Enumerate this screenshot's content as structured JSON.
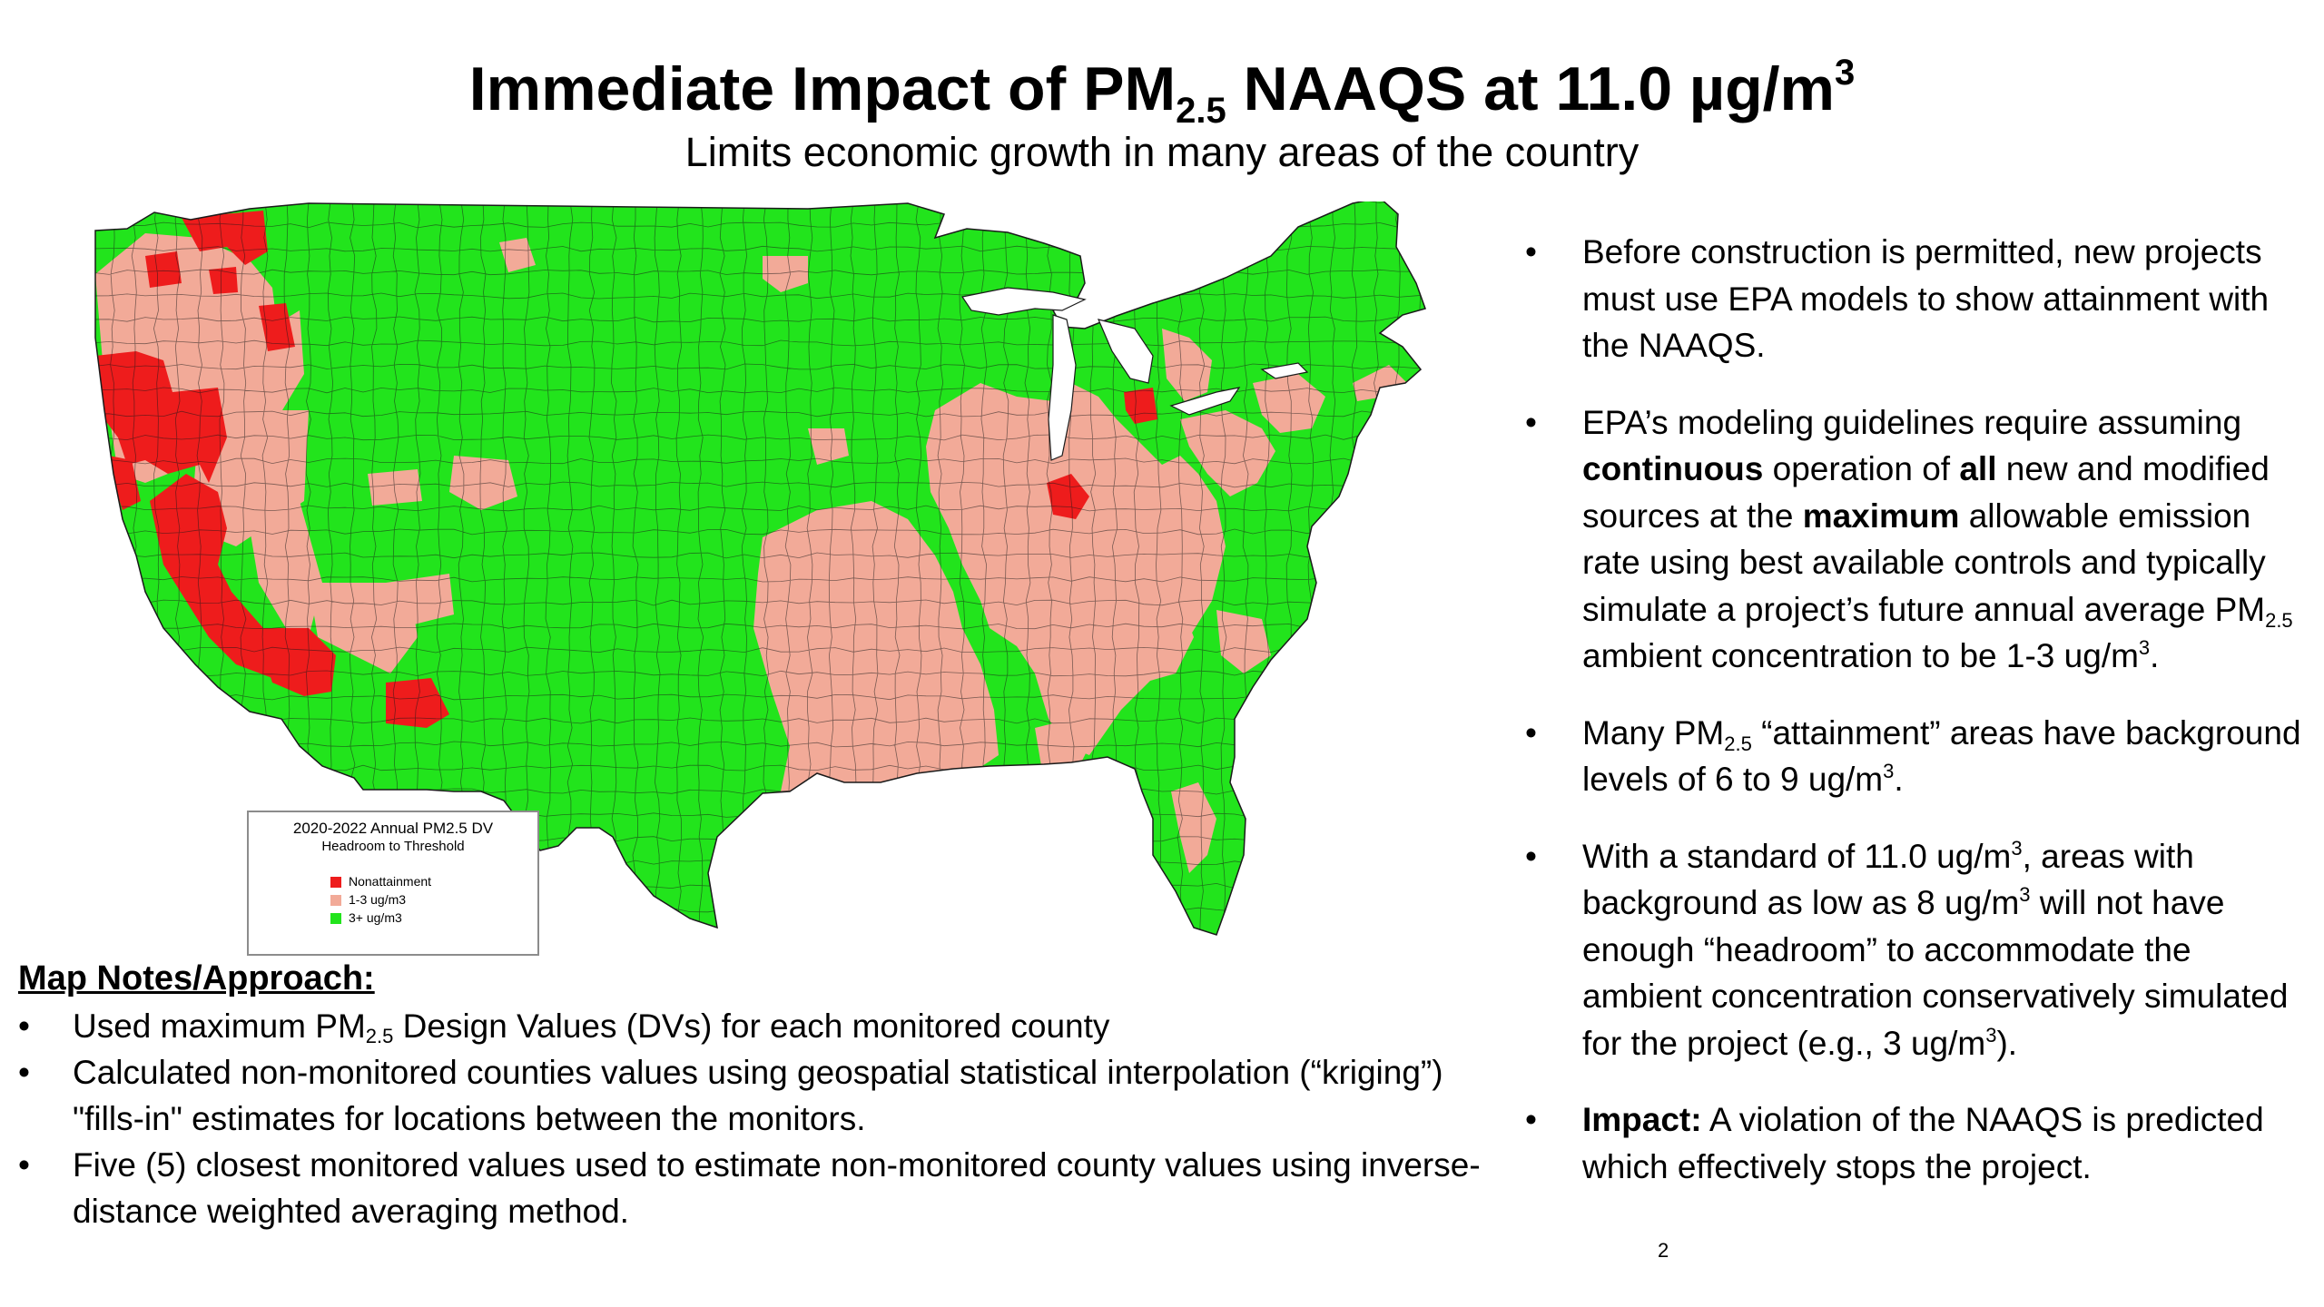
{
  "slide": {
    "title": {
      "prefix": "Immediate Impact of  PM",
      "sub": "2.5",
      "middle": " NAAQS at 11.0 µg/m",
      "sup": "3"
    },
    "subtitle": "Limits economic growth in many areas of the country",
    "page_number": "2"
  },
  "map": {
    "legend": {
      "title_line1": "2020-2022 Annual PM2.5 DV",
      "title_line2": "Headroom to Threshold",
      "items": [
        {
          "label": "Nonattainment",
          "color": "#ee1c1c"
        },
        {
          "label": "1-3 ug/m3",
          "color": "#f2aa98"
        },
        {
          "label": "3+ ug/m3",
          "color": "#22e41c"
        }
      ]
    },
    "colors": {
      "green": "#22e41c",
      "pink": "#f2aa98",
      "red": "#ee1c1c",
      "county_line": "#1a1a1a"
    }
  },
  "notes": {
    "heading": "Map Notes/Approach:",
    "items": [
      {
        "pre": "Used maximum PM",
        "sub": "2.5",
        "post": " Design Values (DVs) for each monitored county"
      },
      {
        "text": "Calculated non-monitored counties values using geospatial statistical interpolation (“kriging”) \"fills-in\" estimates for locations between the monitors."
      },
      {
        "text": "Five (5) closest monitored values used to estimate non-monitored county values using inverse-distance weighted averaging method."
      }
    ]
  },
  "bullets": {
    "b1": "Before construction is permitted, new projects must use EPA models to show attainment with the NAAQS.",
    "b2": {
      "t1": "EPA’s modeling guidelines require assuming ",
      "bold1": "continuous",
      "t2": " operation of ",
      "bold2": "all",
      "t3": " new and modified sources at the ",
      "bold3": "maximum",
      "t4": " allowable emission rate using best available controls and typically simulate a project’s future annual average PM",
      "sub": "2.5",
      "t5": " ambient concentration to be 1-3 ug/m",
      "sup": "3",
      "t6": "."
    },
    "b3": {
      "t1": "Many PM",
      "sub": "2.5",
      "t2": " “attainment” areas have background levels of 6 to 9 ug/m",
      "sup": "3",
      "t3": "."
    },
    "b4": {
      "t1": "With a standard of 11.0 ug/m",
      "sup1": "3",
      "t2": ", areas with background as low as 8 ug/m",
      "sup2": "3",
      "t3": " will not have enough “headroom” to accommodate the ambient concentration conservatively simulated for the project (e.g., 3 ug/m",
      "sup3": "3",
      "t4": ")."
    },
    "b5": {
      "bold": "Impact:",
      "text": " A violation of the NAAQS is predicted which effectively stops the project."
    }
  }
}
